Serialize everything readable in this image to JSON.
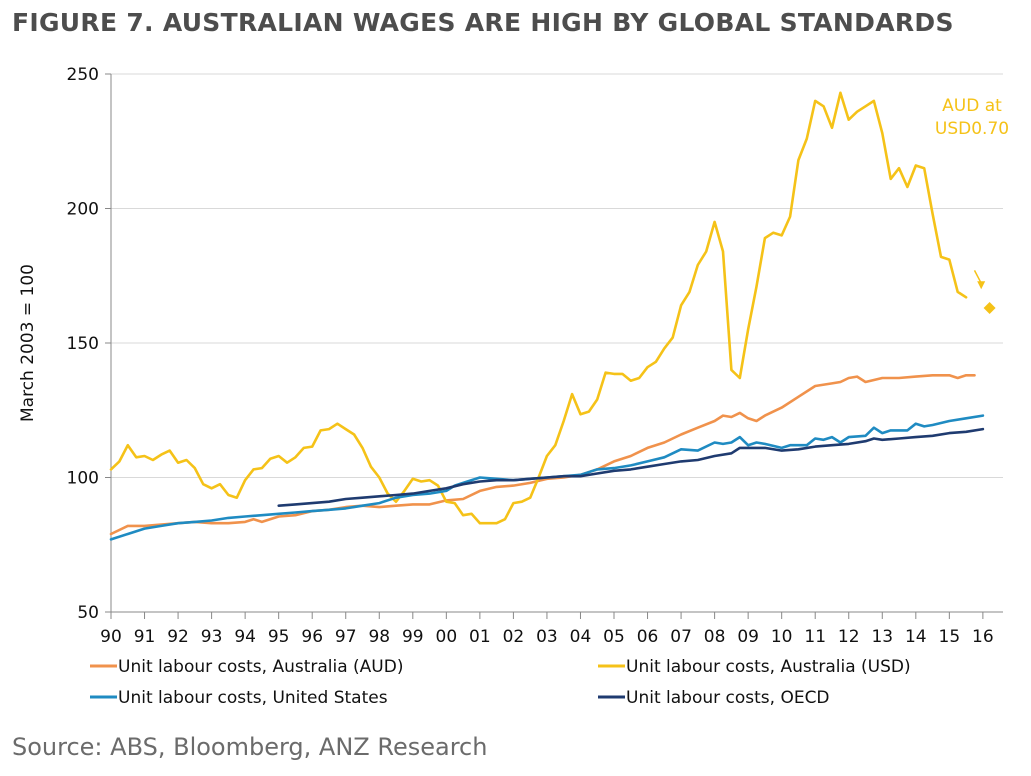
{
  "chart_data": {
    "type": "line",
    "title": "FIGURE 7. AUSTRALIAN WAGES ARE HIGH BY GLOBAL STANDARDS",
    "source": "Source: ABS, Bloomberg, ANZ Research",
    "ylabel": "March 2003 = 100",
    "xlabel": "",
    "ylim": [
      50,
      250
    ],
    "yticks": [
      50,
      100,
      150,
      200,
      250
    ],
    "xlim": [
      1990,
      2016.6
    ],
    "xtick_labels": [
      "90",
      "91",
      "92",
      "93",
      "94",
      "95",
      "96",
      "97",
      "98",
      "99",
      "00",
      "01",
      "02",
      "03",
      "04",
      "05",
      "06",
      "07",
      "08",
      "09",
      "10",
      "11",
      "12",
      "13",
      "14",
      "15",
      "16"
    ],
    "grid": "horizontal",
    "legend_position": "bottom",
    "annotation": {
      "text_line1": "AUD at",
      "text_line2": "USD0.70",
      "color": "#f5c218",
      "marker_x": 2016.2,
      "marker_y": 163,
      "arrow_from": [
        2015.75,
        177
      ],
      "arrow_to": [
        2015.95,
        170
      ]
    },
    "series": [
      {
        "name": "Unit labour costs, Australia (AUD)",
        "color": "#f0924c",
        "points": [
          [
            1990,
            79
          ],
          [
            1990.5,
            82
          ],
          [
            1991,
            82
          ],
          [
            1991.5,
            82.5
          ],
          [
            1992,
            83
          ],
          [
            1992.5,
            83.5
          ],
          [
            1993,
            83
          ],
          [
            1993.5,
            83
          ],
          [
            1994,
            83.5
          ],
          [
            1994.25,
            84.5
          ],
          [
            1994.5,
            83.5
          ],
          [
            1995,
            85.5
          ],
          [
            1995.5,
            86
          ],
          [
            1996,
            87.5
          ],
          [
            1996.5,
            88
          ],
          [
            1997,
            89
          ],
          [
            1997.5,
            89.5
          ],
          [
            1998,
            89
          ],
          [
            1998.5,
            89.5
          ],
          [
            1999,
            90
          ],
          [
            1999.5,
            90
          ],
          [
            2000,
            91.5
          ],
          [
            2000.5,
            92
          ],
          [
            2001,
            95
          ],
          [
            2001.5,
            96.5
          ],
          [
            2002,
            97
          ],
          [
            2002.5,
            98
          ],
          [
            2003,
            99.5
          ],
          [
            2003.5,
            100
          ],
          [
            2004,
            101
          ],
          [
            2004.5,
            103
          ],
          [
            2005,
            106
          ],
          [
            2005.5,
            108
          ],
          [
            2006,
            111
          ],
          [
            2006.5,
            113
          ],
          [
            2007,
            116
          ],
          [
            2007.5,
            118.5
          ],
          [
            2008,
            121
          ],
          [
            2008.25,
            123
          ],
          [
            2008.5,
            122.5
          ],
          [
            2008.75,
            124
          ],
          [
            2009,
            122
          ],
          [
            2009.25,
            121
          ],
          [
            2009.5,
            123
          ],
          [
            2010,
            126
          ],
          [
            2010.5,
            130
          ],
          [
            2011,
            134
          ],
          [
            2011.5,
            135
          ],
          [
            2011.75,
            135.5
          ],
          [
            2012,
            137
          ],
          [
            2012.25,
            137.5
          ],
          [
            2012.5,
            135.5
          ],
          [
            2013,
            137
          ],
          [
            2013.5,
            137
          ],
          [
            2014,
            137.5
          ],
          [
            2014.5,
            138
          ],
          [
            2015,
            138
          ],
          [
            2015.25,
            137
          ],
          [
            2015.5,
            138
          ],
          [
            2015.75,
            138
          ]
        ]
      },
      {
        "name": "Unit labour costs, Australia (USD)",
        "color": "#f5c218",
        "points": [
          [
            1990,
            103
          ],
          [
            1990.25,
            106
          ],
          [
            1990.5,
            112
          ],
          [
            1990.75,
            107.5
          ],
          [
            1991,
            108
          ],
          [
            1991.25,
            106.5
          ],
          [
            1991.5,
            108.5
          ],
          [
            1991.75,
            110
          ],
          [
            1992,
            105.5
          ],
          [
            1992.25,
            106.5
          ],
          [
            1992.5,
            103.5
          ],
          [
            1992.75,
            97.5
          ],
          [
            1993,
            96
          ],
          [
            1993.25,
            97.5
          ],
          [
            1993.5,
            93.5
          ],
          [
            1993.75,
            92.5
          ],
          [
            1994,
            99
          ],
          [
            1994.25,
            103
          ],
          [
            1994.5,
            103.5
          ],
          [
            1994.75,
            107
          ],
          [
            1995,
            108
          ],
          [
            1995.25,
            105.5
          ],
          [
            1995.5,
            107.5
          ],
          [
            1995.75,
            111
          ],
          [
            1996,
            111.5
          ],
          [
            1996.25,
            117.5
          ],
          [
            1996.5,
            118
          ],
          [
            1996.75,
            120
          ],
          [
            1997,
            118
          ],
          [
            1997.25,
            116
          ],
          [
            1997.5,
            111
          ],
          [
            1997.75,
            104
          ],
          [
            1998,
            100
          ],
          [
            1998.25,
            94
          ],
          [
            1998.5,
            91
          ],
          [
            1998.75,
            95
          ],
          [
            1999,
            99.5
          ],
          [
            1999.25,
            98.5
          ],
          [
            1999.5,
            99
          ],
          [
            1999.75,
            97
          ],
          [
            2000,
            91
          ],
          [
            2000.25,
            90.5
          ],
          [
            2000.5,
            86
          ],
          [
            2000.75,
            86.5
          ],
          [
            2001,
            83
          ],
          [
            2001.5,
            83
          ],
          [
            2001.75,
            84.5
          ],
          [
            2002,
            90.5
          ],
          [
            2002.25,
            91
          ],
          [
            2002.5,
            92.5
          ],
          [
            2002.75,
            100
          ],
          [
            2003,
            108
          ],
          [
            2003.25,
            112
          ],
          [
            2003.5,
            121
          ],
          [
            2003.75,
            131
          ],
          [
            2004,
            123.5
          ],
          [
            2004.25,
            124.5
          ],
          [
            2004.5,
            129
          ],
          [
            2004.75,
            139
          ],
          [
            2005,
            138.5
          ],
          [
            2005.25,
            138.5
          ],
          [
            2005.5,
            136
          ],
          [
            2005.75,
            137
          ],
          [
            2006,
            141
          ],
          [
            2006.25,
            143
          ],
          [
            2006.5,
            148
          ],
          [
            2006.75,
            152
          ],
          [
            2007,
            164
          ],
          [
            2007.25,
            169
          ],
          [
            2007.5,
            179
          ],
          [
            2007.75,
            184
          ],
          [
            2008,
            195
          ],
          [
            2008.25,
            184
          ],
          [
            2008.5,
            140
          ],
          [
            2008.75,
            137
          ],
          [
            2009,
            155
          ],
          [
            2009.25,
            171
          ],
          [
            2009.5,
            189
          ],
          [
            2009.75,
            191
          ],
          [
            2010,
            190
          ],
          [
            2010.25,
            197
          ],
          [
            2010.5,
            218
          ],
          [
            2010.75,
            226
          ],
          [
            2011,
            240
          ],
          [
            2011.25,
            238
          ],
          [
            2011.5,
            230
          ],
          [
            2011.75,
            243
          ],
          [
            2012,
            233
          ],
          [
            2012.25,
            236
          ],
          [
            2012.5,
            238
          ],
          [
            2012.75,
            240
          ],
          [
            2013,
            228
          ],
          [
            2013.25,
            211
          ],
          [
            2013.5,
            215
          ],
          [
            2013.75,
            208
          ],
          [
            2014,
            216
          ],
          [
            2014.25,
            215
          ],
          [
            2014.5,
            198
          ],
          [
            2014.75,
            182
          ],
          [
            2015,
            181
          ],
          [
            2015.25,
            169
          ],
          [
            2015.5,
            167
          ]
        ]
      },
      {
        "name": "Unit labour costs, United States",
        "color": "#1f8bc2",
        "points": [
          [
            1990,
            77
          ],
          [
            1990.5,
            79
          ],
          [
            1991,
            81
          ],
          [
            1991.5,
            82
          ],
          [
            1992,
            83
          ],
          [
            1992.5,
            83.5
          ],
          [
            1993,
            84
          ],
          [
            1993.5,
            85
          ],
          [
            1994,
            85.5
          ],
          [
            1994.5,
            86
          ],
          [
            1995,
            86.5
          ],
          [
            1995.5,
            87
          ],
          [
            1996,
            87.5
          ],
          [
            1996.5,
            88
          ],
          [
            1997,
            88.5
          ],
          [
            1997.5,
            89.5
          ],
          [
            1998,
            90.5
          ],
          [
            1998.5,
            92.5
          ],
          [
            1999,
            93.5
          ],
          [
            1999.5,
            94
          ],
          [
            2000,
            95
          ],
          [
            2000.25,
            97
          ],
          [
            2000.5,
            98
          ],
          [
            2001,
            100
          ],
          [
            2001.5,
            99.5
          ],
          [
            2002,
            99
          ],
          [
            2002.5,
            99.5
          ],
          [
            2003,
            100
          ],
          [
            2003.5,
            100.5
          ],
          [
            2004,
            101
          ],
          [
            2004.5,
            103
          ],
          [
            2005,
            103.5
          ],
          [
            2005.5,
            104.5
          ],
          [
            2006,
            106
          ],
          [
            2006.5,
            107.5
          ],
          [
            2007,
            110.5
          ],
          [
            2007.5,
            110
          ],
          [
            2008,
            113
          ],
          [
            2008.25,
            112.5
          ],
          [
            2008.5,
            113
          ],
          [
            2008.75,
            115
          ],
          [
            2009,
            112
          ],
          [
            2009.25,
            113
          ],
          [
            2009.5,
            112.5
          ],
          [
            2010,
            111
          ],
          [
            2010.25,
            112
          ],
          [
            2010.75,
            112
          ],
          [
            2011,
            114.5
          ],
          [
            2011.25,
            114
          ],
          [
            2011.5,
            115
          ],
          [
            2011.75,
            113
          ],
          [
            2012,
            115
          ],
          [
            2012.5,
            115.5
          ],
          [
            2012.75,
            118.5
          ],
          [
            2013,
            116.5
          ],
          [
            2013.25,
            117.5
          ],
          [
            2013.75,
            117.5
          ],
          [
            2014,
            120
          ],
          [
            2014.25,
            119
          ],
          [
            2014.5,
            119.5
          ],
          [
            2015,
            121
          ],
          [
            2015.5,
            122
          ],
          [
            2016,
            123
          ]
        ]
      },
      {
        "name": "Unit labour costs, OECD",
        "color": "#1f3b70",
        "points": [
          [
            1995,
            89.5
          ],
          [
            1995.5,
            90
          ],
          [
            1996,
            90.5
          ],
          [
            1996.5,
            91
          ],
          [
            1997,
            92
          ],
          [
            1997.5,
            92.5
          ],
          [
            1998,
            93
          ],
          [
            1998.5,
            93.5
          ],
          [
            1999,
            94
          ],
          [
            1999.5,
            95
          ],
          [
            2000,
            96
          ],
          [
            2000.5,
            97.5
          ],
          [
            2001,
            98.5
          ],
          [
            2001.5,
            99
          ],
          [
            2002,
            99
          ],
          [
            2002.5,
            99.5
          ],
          [
            2003,
            100
          ],
          [
            2003.5,
            100.5
          ],
          [
            2004,
            100.5
          ],
          [
            2004.5,
            101.5
          ],
          [
            2005,
            102.5
          ],
          [
            2005.5,
            103
          ],
          [
            2006,
            104
          ],
          [
            2006.5,
            105
          ],
          [
            2007,
            106
          ],
          [
            2007.5,
            106.5
          ],
          [
            2008,
            108
          ],
          [
            2008.5,
            109
          ],
          [
            2008.75,
            111
          ],
          [
            2009,
            111
          ],
          [
            2009.5,
            111
          ],
          [
            2010,
            110
          ],
          [
            2010.5,
            110.5
          ],
          [
            2011,
            111.5
          ],
          [
            2011.5,
            112
          ],
          [
            2012,
            112.5
          ],
          [
            2012.5,
            113.5
          ],
          [
            2012.75,
            114.5
          ],
          [
            2013,
            114
          ],
          [
            2013.5,
            114.5
          ],
          [
            2014,
            115
          ],
          [
            2014.5,
            115.5
          ],
          [
            2015,
            116.5
          ],
          [
            2015.5,
            117
          ],
          [
            2016,
            118
          ]
        ]
      }
    ]
  }
}
